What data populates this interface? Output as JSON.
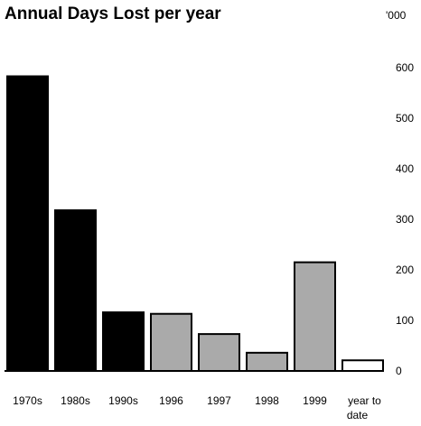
{
  "chart_data": {
    "type": "bar",
    "title": "Annual Days Lost per year",
    "unit_label": "'000",
    "categories": [
      "1970s",
      "1980s",
      "1990s",
      "1996",
      "1997",
      "1998",
      "1999",
      "year to date"
    ],
    "values": [
      583,
      318,
      116,
      113,
      73,
      36,
      215,
      21
    ],
    "bar_colors": [
      "#000000",
      "#000000",
      "#000000",
      "#aaaaaa",
      "#aaaaaa",
      "#aaaaaa",
      "#aaaaaa",
      "#ffffff"
    ],
    "bar_stroke": "#000000",
    "ylim": [
      0,
      600
    ],
    "y_ticks": [
      "0",
      "100",
      "200",
      "300",
      "400",
      "500",
      "600"
    ],
    "y_axis_position": "right",
    "grid": false,
    "legend": "none"
  }
}
